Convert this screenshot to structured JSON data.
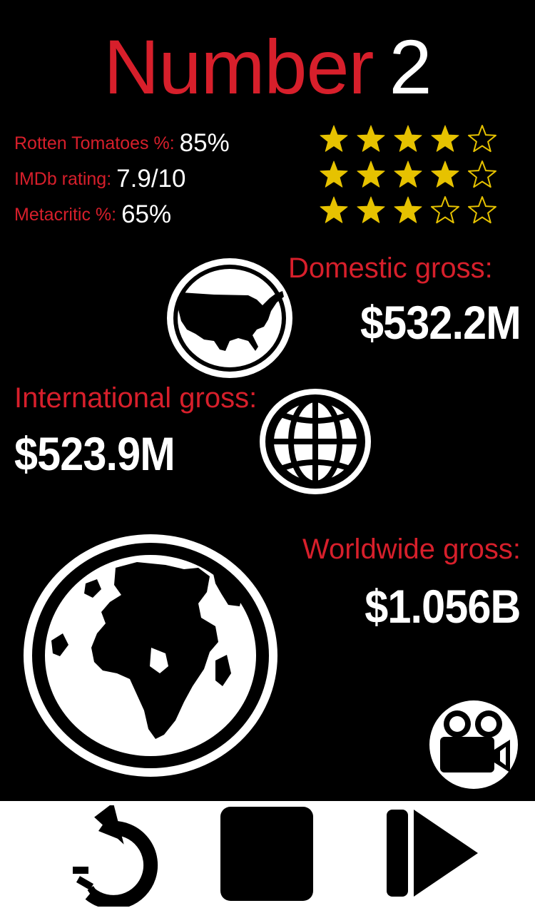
{
  "title": {
    "word": "Number",
    "rank": "2"
  },
  "ratings": [
    {
      "label": "Rotten Tomatoes %:",
      "value": "85%",
      "stars": 4
    },
    {
      "label": "IMDb rating:",
      "value": "7.9/10",
      "stars": 4
    },
    {
      "label": "Metacritic %:",
      "value": "65%",
      "stars": 3
    }
  ],
  "stars_total": 5,
  "gross": {
    "domestic": {
      "label": "Domestic gross:",
      "value": "$532.2M",
      "icon": "usa-map-icon"
    },
    "international": {
      "label": "International gross:",
      "value": "$523.9M",
      "icon": "globe-grid-icon"
    },
    "worldwide": {
      "label": "Worldwide gross:",
      "value": "$1.056B",
      "icon": "earth-icon"
    }
  },
  "controls": [
    "replay-icon",
    "stop-icon",
    "skip-next-icon"
  ],
  "colors": {
    "accent": "#d71f2b",
    "star": "#e6c200",
    "background": "#000000",
    "controls_bar": "#ffffff"
  }
}
